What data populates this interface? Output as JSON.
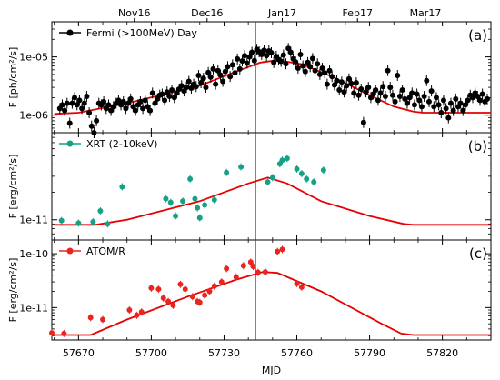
{
  "chart_data": [
    {
      "id": "a",
      "type": "scatter",
      "panel_label": "(a)",
      "ylabel": "F [ph/cm²/s]",
      "yscale": "log",
      "ylim": [
        5e-07,
        4e-05
      ],
      "yticks": [
        {
          "value": 1e-06,
          "label": "1e-06"
        },
        {
          "value": 1e-05,
          "label": "1e-05"
        }
      ],
      "legend": {
        "label": "Fermi (>100MeV) Day",
        "color": "#000000",
        "placement": "top-left"
      },
      "points_color": "#000000",
      "model_color": "#e60000",
      "points": [
        [
          57662.3,
          1.3e-06
        ],
        [
          57663.3,
          1.5e-06
        ],
        [
          57664.3,
          1.2e-06
        ],
        [
          57665.3,
          1.6e-06
        ],
        [
          57666.4,
          7.3e-07
        ],
        [
          57667.4,
          1.6e-06
        ],
        [
          57668.4,
          2e-06
        ],
        [
          57669.4,
          1.5e-06
        ],
        [
          57670.4,
          1.8e-06
        ],
        [
          57671.4,
          1.3e-06
        ],
        [
          57672.4,
          1.6e-06
        ],
        [
          57673.4,
          2.1e-06
        ],
        [
          57674.4,
          1.1e-06
        ],
        [
          57675.4,
          6.5e-07
        ],
        [
          57676.4,
          5e-07
        ],
        [
          57677.4,
          8e-07
        ],
        [
          57678.4,
          1.6e-06
        ],
        [
          57679.4,
          1.5e-06
        ],
        [
          57680.4,
          1.7e-06
        ],
        [
          57681.4,
          1.3e-06
        ],
        [
          57682.4,
          1.5e-06
        ],
        [
          57683.4,
          1.2e-06
        ],
        [
          57684.4,
          1.4e-06
        ],
        [
          57685.5,
          1.6e-06
        ],
        [
          57686.5,
          1.8e-06
        ],
        [
          57687.5,
          1.5e-06
        ],
        [
          57688.5,
          1.7e-06
        ],
        [
          57689.5,
          1.3e-06
        ],
        [
          57690.5,
          1.6e-06
        ],
        [
          57691.5,
          1.9e-06
        ],
        [
          57692.5,
          1.4e-06
        ],
        [
          57693.5,
          1.2e-06
        ],
        [
          57694.5,
          1.5e-06
        ],
        [
          57695.5,
          1.7e-06
        ],
        [
          57696.5,
          1.3e-06
        ],
        [
          57697.5,
          1.8e-06
        ],
        [
          57698.5,
          1.4e-06
        ],
        [
          57699.5,
          1.2e-06
        ],
        [
          57700.5,
          2.4e-06
        ],
        [
          57701.5,
          1.6e-06
        ],
        [
          57702.5,
          1.9e-06
        ],
        [
          57703.5,
          2.2e-06
        ],
        [
          57704.5,
          2.3e-06
        ],
        [
          57705.5,
          1.8e-06
        ],
        [
          57706.5,
          2.5e-06
        ],
        [
          57707.5,
          2.1e-06
        ],
        [
          57708.5,
          2.7e-06
        ],
        [
          57709.5,
          2e-06
        ],
        [
          57710.5,
          2.4e-06
        ],
        [
          57711.5,
          2.8e-06
        ],
        [
          57712.5,
          3.2e-06
        ],
        [
          57713.5,
          2.6e-06
        ],
        [
          57714.5,
          3e-06
        ],
        [
          57715.5,
          3.8e-06
        ],
        [
          57716.5,
          2.9e-06
        ],
        [
          57717.5,
          3.4e-06
        ],
        [
          57718.5,
          3.1e-06
        ],
        [
          57719.5,
          4.8e-06
        ],
        [
          57720.5,
          3.6e-06
        ],
        [
          57721.5,
          4.3e-06
        ],
        [
          57722.5,
          3e-06
        ],
        [
          57723.5,
          5.4e-06
        ],
        [
          57724.5,
          4.5e-06
        ],
        [
          57725.5,
          6.2e-06
        ],
        [
          57726.5,
          3.4e-06
        ],
        [
          57727.5,
          5.8e-06
        ],
        [
          57728.5,
          4.9e-06
        ],
        [
          57729.5,
          3.8e-06
        ],
        [
          57730.5,
          5.6e-06
        ],
        [
          57731.5,
          6.8e-06
        ],
        [
          57732.5,
          4.6e-06
        ],
        [
          57733.5,
          7.3e-06
        ],
        [
          57734.5,
          5.3e-06
        ],
        [
          57735.5,
          9.2e-06
        ],
        [
          57736.5,
          6.2e-06
        ],
        [
          57737.5,
          8.5e-06
        ],
        [
          57738.5,
          1.05e-05
        ],
        [
          57739.5,
          7.8e-06
        ],
        [
          57740.5,
          1e-05
        ],
        [
          57741.5,
          1.2e-05
        ],
        [
          57742.5,
          8.6e-06
        ],
        [
          57743.5,
          1.35e-05
        ],
        [
          57744.5,
          1.22e-05
        ],
        [
          57745.5,
          1.1e-05
        ],
        [
          57746.5,
          1.3e-05
        ],
        [
          57747.5,
          1.05e-05
        ],
        [
          57748.5,
          1.27e-05
        ],
        [
          57749.5,
          1.18e-05
        ],
        [
          57750.5,
          8e-06
        ],
        [
          57751.5,
          1.02e-05
        ],
        [
          57752.5,
          9e-06
        ],
        [
          57753.5,
          8.4e-06
        ],
        [
          57754.5,
          1.08e-05
        ],
        [
          57755.5,
          7.6e-06
        ],
        [
          57756.5,
          1.4e-05
        ],
        [
          57757.5,
          1.2e-05
        ],
        [
          57758.5,
          9.2e-06
        ],
        [
          57759.5,
          8.2e-06
        ],
        [
          57760.5,
          6.4e-06
        ],
        [
          57761.5,
          1.1e-05
        ],
        [
          57762.5,
          7e-06
        ],
        [
          57763.5,
          5.6e-06
        ],
        [
          57764.5,
          8e-06
        ],
        [
          57765.5,
          6.8e-06
        ],
        [
          57766.5,
          9.4e-06
        ],
        [
          57767.5,
          5.8e-06
        ],
        [
          57768.5,
          7.6e-06
        ],
        [
          57769.5,
          5e-06
        ],
        [
          57770.5,
          6.4e-06
        ],
        [
          57771.5,
          5.3e-06
        ],
        [
          57772.5,
          3.4e-06
        ],
        [
          57773.5,
          5.8e-06
        ],
        [
          57774.5,
          4.6e-06
        ],
        [
          57775.5,
          3.3e-06
        ],
        [
          57776.5,
          3.9e-06
        ],
        [
          57777.5,
          2.7e-06
        ],
        [
          57778.5,
          3.7e-06
        ],
        [
          57779.5,
          2.5e-06
        ],
        [
          57780.5,
          3.2e-06
        ],
        [
          57781.5,
          4.2e-06
        ],
        [
          57782.5,
          3.5e-06
        ],
        [
          57783.5,
          2.4e-06
        ],
        [
          57784.5,
          3.6e-06
        ],
        [
          57785.5,
          2.2e-06
        ],
        [
          57786.5,
          2.8e-06
        ],
        [
          57787.5,
          7.5e-07
        ],
        [
          57788.5,
          2.5e-06
        ],
        [
          57789.5,
          3e-06
        ],
        [
          57790.5,
          2e-06
        ],
        [
          57791.5,
          2.3e-06
        ],
        [
          57792.5,
          2.7e-06
        ],
        [
          57793.5,
          1.8e-06
        ],
        [
          57794.5,
          2.4e-06
        ],
        [
          57795.5,
          3.1e-06
        ],
        [
          57796.5,
          2.1e-06
        ],
        [
          57797.5,
          5.8e-06
        ],
        [
          57798.5,
          3e-06
        ],
        [
          57799.5,
          2.2e-06
        ],
        [
          57800.5,
          1.7e-06
        ],
        [
          57801.5,
          4.8e-06
        ],
        [
          57802.5,
          2.1e-06
        ],
        [
          57803.5,
          2.7e-06
        ],
        [
          57804.5,
          1.9e-06
        ],
        [
          57805.5,
          1.6e-06
        ],
        [
          57806.5,
          2e-06
        ],
        [
          57807.5,
          2.4e-06
        ],
        [
          57808.5,
          1.5e-06
        ],
        [
          57809.5,
          2.3e-06
        ],
        [
          57810.5,
          1.8e-06
        ],
        [
          57811.5,
          1.4e-06
        ],
        [
          57812.5,
          2.1e-06
        ],
        [
          57813.5,
          3.9e-06
        ],
        [
          57814.5,
          1.7e-06
        ],
        [
          57815.5,
          2.6e-06
        ],
        [
          57816.5,
          1.4e-06
        ],
        [
          57817.5,
          2e-06
        ],
        [
          57818.5,
          1.5e-06
        ],
        [
          57819.5,
          1.1e-06
        ],
        [
          57820.5,
          1.8e-06
        ],
        [
          57821.5,
          1.3e-06
        ],
        [
          57822.5,
          9e-07
        ],
        [
          57823.5,
          1.6e-06
        ],
        [
          57824.5,
          1.2e-06
        ],
        [
          57825.5,
          1.9e-06
        ],
        [
          57826.5,
          1.4e-06
        ],
        [
          57827.5,
          1.6e-06
        ],
        [
          57828.5,
          1.2e-06
        ],
        [
          57829.5,
          1.5e-06
        ],
        [
          57830.5,
          1.8e-06
        ],
        [
          57831.5,
          2.2e-06
        ],
        [
          57832.5,
          2e-06
        ],
        [
          57833.5,
          2.4e-06
        ],
        [
          57834.5,
          2.1e-06
        ],
        [
          57835.5,
          1.8e-06
        ],
        [
          57836.5,
          2.3e-06
        ],
        [
          57837.5,
          1.7e-06
        ],
        [
          57838.5,
          1.9e-06
        ]
      ],
      "model": [
        [
          57660,
          1.05e-06
        ],
        [
          57670,
          1.1e-06
        ],
        [
          57690,
          1.6e-06
        ],
        [
          57720,
          3.2e-06
        ],
        [
          57735,
          5.6e-06
        ],
        [
          57745,
          8e-06
        ],
        [
          57752,
          8.8e-06
        ],
        [
          57762,
          7.5e-06
        ],
        [
          57775,
          4.5e-06
        ],
        [
          57790,
          2.2e-06
        ],
        [
          57800,
          1.4e-06
        ],
        [
          57808,
          1.15e-06
        ],
        [
          57812,
          1.1e-06
        ],
        [
          57840,
          1.1e-06
        ]
      ]
    },
    {
      "id": "b",
      "type": "scatter",
      "panel_label": "(b)",
      "ylabel": "F [erg/cm²/s]",
      "yscale": "log",
      "ylim": [
        6e-12,
        9e-11
      ],
      "yticks": [
        {
          "value": 1e-11,
          "label": "1e-11"
        }
      ],
      "legend": {
        "label": "XRT (2-10keV)",
        "color": "#16a085",
        "placement": "top-left"
      },
      "points_color": "#16a085",
      "model_color": "#e60000",
      "points": [
        [
          57663,
          9.8e-12
        ],
        [
          57670,
          9.2e-12
        ],
        [
          57676,
          9.5e-12
        ],
        [
          57679,
          1.25e-11
        ],
        [
          57682,
          9e-12
        ],
        [
          57688,
          2.3e-11
        ],
        [
          57706,
          1.7e-11
        ],
        [
          57708,
          1.55e-11
        ],
        [
          57710,
          1.1e-11
        ],
        [
          57713,
          1.6e-11
        ],
        [
          57716,
          2.8e-11
        ],
        [
          57718,
          1.7e-11
        ],
        [
          57719,
          1.35e-11
        ],
        [
          57720,
          1.05e-11
        ],
        [
          57722,
          1.45e-11
        ],
        [
          57726,
          1.65e-11
        ],
        [
          57731,
          3.3e-11
        ],
        [
          57737,
          3.8e-11
        ],
        [
          57748,
          2.6e-11
        ],
        [
          57750,
          2.9e-11
        ],
        [
          57753,
          4.1e-11
        ],
        [
          57754,
          4.5e-11
        ],
        [
          57756,
          4.7e-11
        ],
        [
          57760,
          3.6e-11
        ],
        [
          57762,
          3.2e-11
        ],
        [
          57764,
          2.8e-11
        ],
        [
          57767,
          2.6e-11
        ],
        [
          57771,
          3.5e-11
        ]
      ],
      "model": [
        [
          57660,
          8.8e-12
        ],
        [
          57677,
          8.8e-12
        ],
        [
          57690,
          1e-11
        ],
        [
          57720,
          1.6e-11
        ],
        [
          57740,
          2.5e-11
        ],
        [
          57748,
          2.9e-11
        ],
        [
          57756,
          2.5e-11
        ],
        [
          57770,
          1.6e-11
        ],
        [
          57790,
          1.1e-11
        ],
        [
          57804,
          9e-12
        ],
        [
          57808,
          8.8e-12
        ],
        [
          57840,
          8.8e-12
        ]
      ]
    },
    {
      "id": "c",
      "type": "scatter",
      "panel_label": "(c)",
      "ylabel": "F [erg/cm²/s]",
      "yscale": "log",
      "ylim": [
        2.5e-12,
        1.8e-10
      ],
      "yticks": [
        {
          "value": 1e-11,
          "label": "1e-11"
        },
        {
          "value": 1e-10,
          "label": "1e-10"
        }
      ],
      "legend": {
        "label": "ATOM/R",
        "color": "#e8261f",
        "placement": "top-left"
      },
      "points_color": "#e8261f",
      "model_color": "#e60000",
      "points": [
        [
          57659,
          3.4e-12
        ],
        [
          57664,
          3.3e-12
        ],
        [
          57675,
          6.5e-12
        ],
        [
          57680,
          6e-12
        ],
        [
          57691,
          9e-12
        ],
        [
          57694,
          7.2e-12
        ],
        [
          57696,
          8.3e-12
        ],
        [
          57700,
          2.3e-11
        ],
        [
          57703,
          2.2e-11
        ],
        [
          57705,
          1.5e-11
        ],
        [
          57707,
          1.3e-11
        ],
        [
          57709,
          1.1e-11
        ],
        [
          57712,
          2.7e-11
        ],
        [
          57714,
          2.2e-11
        ],
        [
          57717,
          1.6e-11
        ],
        [
          57719,
          1.3e-11
        ],
        [
          57720,
          1.25e-11
        ],
        [
          57722,
          1.7e-11
        ],
        [
          57724,
          2e-11
        ],
        [
          57726,
          2.5e-11
        ],
        [
          57729,
          3e-11
        ],
        [
          57731,
          5.3e-11
        ],
        [
          57735,
          3.7e-11
        ],
        [
          57738,
          6e-11
        ],
        [
          57741,
          7e-11
        ],
        [
          57742,
          5.8e-11
        ],
        [
          57744,
          4.5e-11
        ],
        [
          57747,
          4.6e-11
        ],
        [
          57752,
          1.1e-10
        ],
        [
          57754,
          1.2e-10
        ],
        [
          57760,
          2.8e-11
        ],
        [
          57762,
          2.4e-11
        ]
      ],
      "model": [
        [
          57660,
          3.1e-12
        ],
        [
          57675,
          3.1e-12
        ],
        [
          57690,
          6e-12
        ],
        [
          57715,
          1.6e-11
        ],
        [
          57735,
          3.3e-11
        ],
        [
          57746,
          4.6e-11
        ],
        [
          57752,
          4.4e-11
        ],
        [
          57770,
          2e-11
        ],
        [
          57795,
          5e-12
        ],
        [
          57803,
          3.3e-12
        ],
        [
          57808,
          3.1e-12
        ],
        [
          57840,
          3.1e-12
        ]
      ]
    }
  ],
  "shared_x": {
    "label": "MJD",
    "xlim": [
      57659,
      57840
    ],
    "ticks": [
      57670,
      57700,
      57730,
      57760,
      57790,
      57820
    ],
    "month_ticks": [
      {
        "value": 57693,
        "label": "Nov16"
      },
      {
        "value": 57723,
        "label": "Dec16"
      },
      {
        "value": 57754,
        "label": "Jan17"
      },
      {
        "value": 57785,
        "label": "Feb17"
      },
      {
        "value": 57813,
        "label": "Mar17"
      }
    ],
    "vline": 57743
  }
}
